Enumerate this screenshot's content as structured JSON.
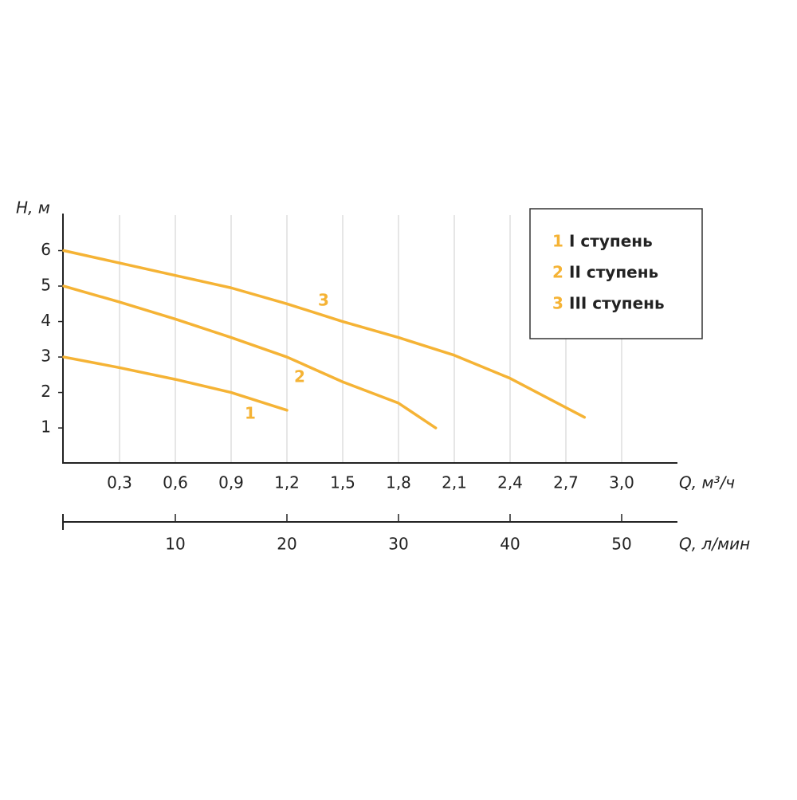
{
  "chart_data": {
    "type": "line",
    "y_label": "H, м",
    "x_label": "Q, м³/ч",
    "x2_label": "Q, л/мин",
    "xlim": [
      0,
      3.3
    ],
    "xticks": [
      {
        "value": 0.3,
        "label": "0,3"
      },
      {
        "value": 0.6,
        "label": "0,6"
      },
      {
        "value": 0.9,
        "label": "0,9"
      },
      {
        "value": 1.2,
        "label": "1,2"
      },
      {
        "value": 1.5,
        "label": "1,5"
      },
      {
        "value": 1.8,
        "label": "1,8"
      },
      {
        "value": 2.1,
        "label": "2,1"
      },
      {
        "value": 2.4,
        "label": "2,4"
      },
      {
        "value": 2.7,
        "label": "2,7"
      },
      {
        "value": 3.0,
        "label": "3,0"
      }
    ],
    "ylim": [
      0,
      7
    ],
    "yticks": [
      1,
      2,
      3,
      4,
      5,
      6
    ],
    "x2lim": [
      0,
      55
    ],
    "x2ticks": [
      10,
      20,
      30,
      40,
      50
    ],
    "grid": true,
    "series": [
      {
        "name": "I ступень",
        "label": "1",
        "color": "#f5b335",
        "x": [
          0,
          0.3,
          0.6,
          0.9,
          1.2
        ],
        "values": [
          3,
          2.7,
          2.37,
          2.0,
          1.5
        ]
      },
      {
        "name": "II ступень",
        "label": "2",
        "color": "#f5b335",
        "x": [
          0,
          0.3,
          0.6,
          0.9,
          1.2,
          1.5,
          1.8,
          2.0
        ],
        "values": [
          5,
          4.55,
          4.07,
          3.55,
          3.0,
          2.3,
          1.7,
          1.0
        ]
      },
      {
        "name": "III ступень",
        "label": "3",
        "color": "#f5b335",
        "x": [
          0,
          0.3,
          0.6,
          0.9,
          1.2,
          1.5,
          1.8,
          2.1,
          2.4,
          2.8
        ],
        "values": [
          6,
          5.65,
          5.3,
          4.95,
          4.5,
          4.0,
          3.55,
          3.05,
          2.4,
          1.3
        ]
      }
    ]
  }
}
